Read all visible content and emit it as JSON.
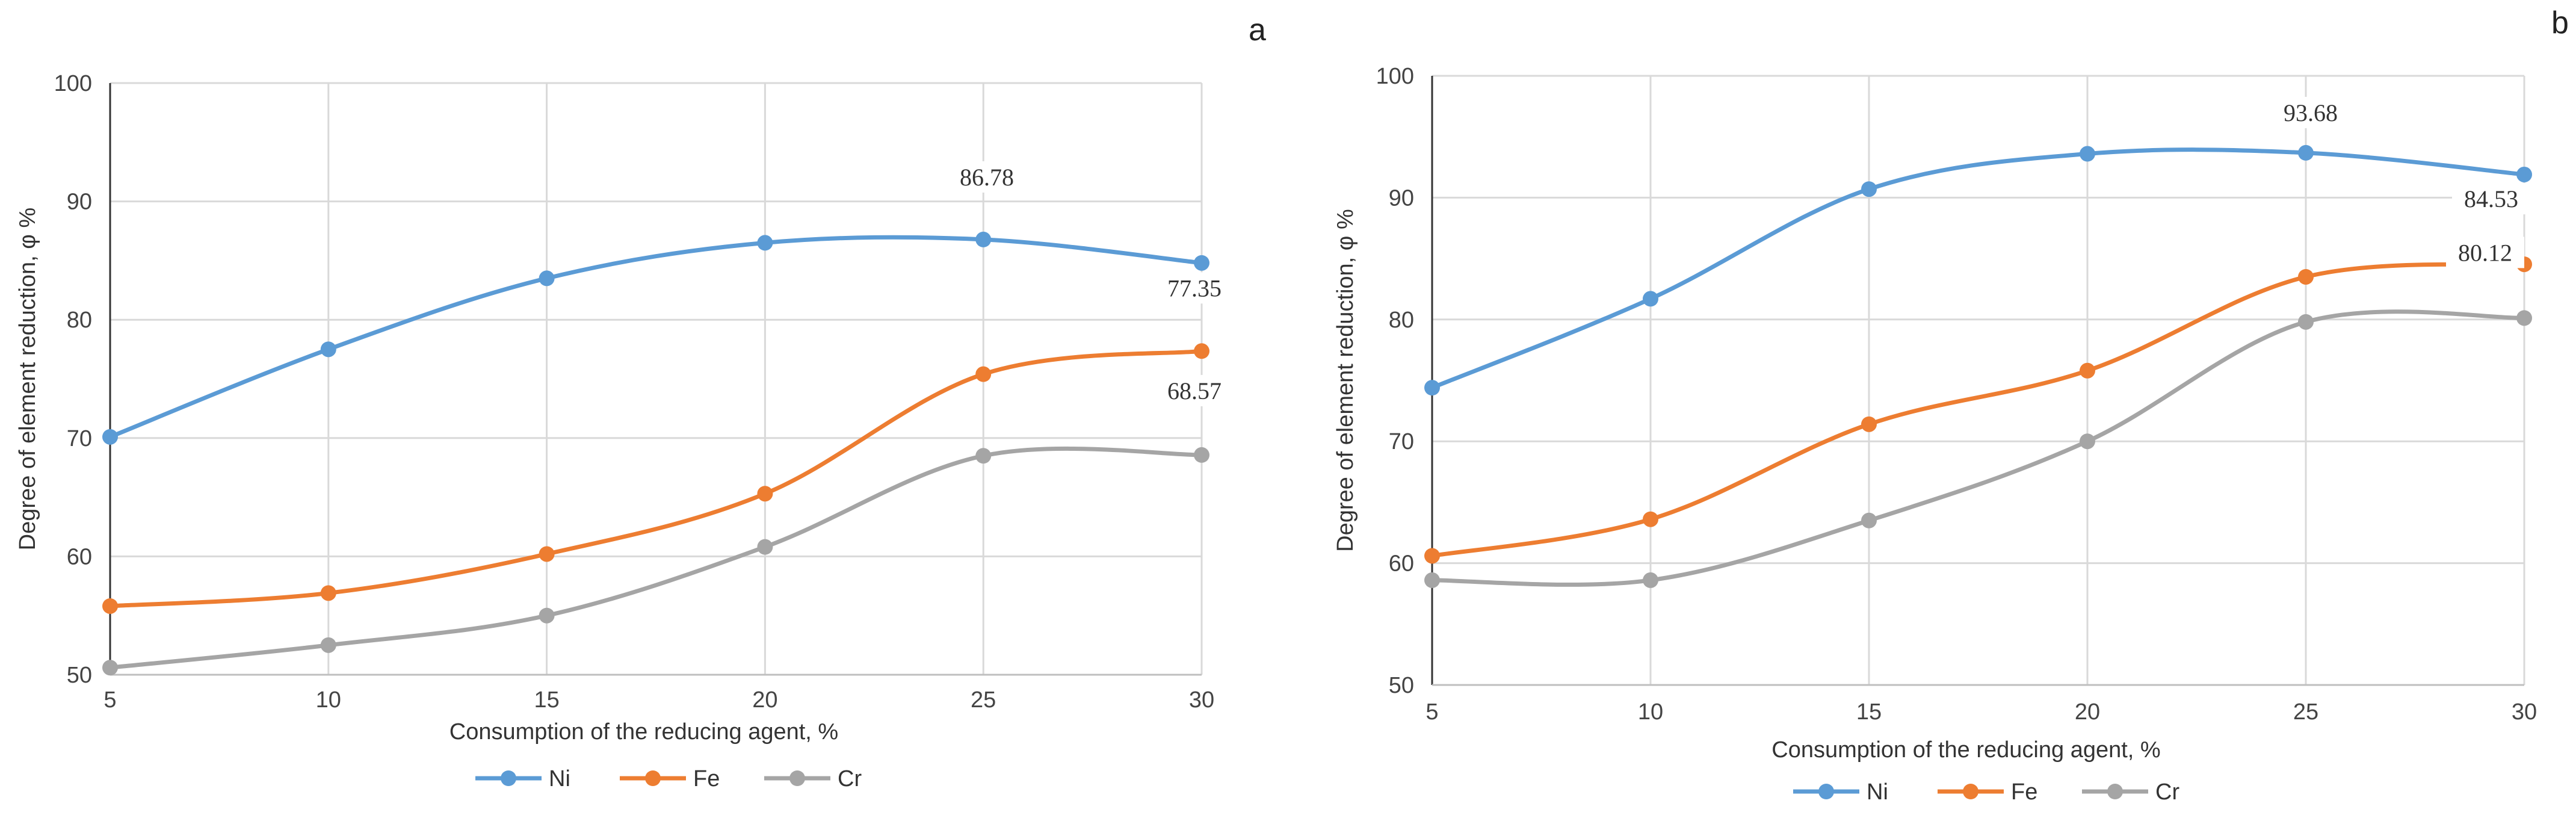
{
  "chart_data": [
    {
      "panel_label": "a",
      "type": "line",
      "x": [
        5,
        10,
        15,
        20,
        25,
        30
      ],
      "xlabel": "Consumption  of the reducing agent, %",
      "ylabel": "Degree of element reduction, φ %",
      "ylim": [
        50,
        100
      ],
      "yticks": [
        50,
        60,
        70,
        80,
        90,
        100
      ],
      "grid": true,
      "smooth": true,
      "legend": "bottom",
      "series": [
        {
          "name": "Ni",
          "color": "#5b9bd5",
          "values": [
            70.1,
            77.5,
            83.5,
            86.5,
            86.78,
            84.8
          ]
        },
        {
          "name": "Fe",
          "color": "#ed7d31",
          "values": [
            55.8,
            56.9,
            60.2,
            65.3,
            75.4,
            77.35
          ]
        },
        {
          "name": "Cr",
          "color": "#a5a5a5",
          "values": [
            50.6,
            52.5,
            55.0,
            60.8,
            68.5,
            68.57
          ]
        }
      ],
      "annotations": [
        {
          "text": "86.78",
          "series": "Ni",
          "x": 25
        },
        {
          "text": "77.35",
          "series": "Fe",
          "x": 30
        },
        {
          "text": "68.57",
          "series": "Cr",
          "x": 30
        }
      ]
    },
    {
      "panel_label": "b",
      "type": "line",
      "x": [
        5,
        10,
        15,
        20,
        25,
        30
      ],
      "xlabel": "Consumption  of the reducing agent, %",
      "ylabel": "Degree of element reduction, φ %",
      "ylim": [
        50,
        100
      ],
      "yticks": [
        50,
        60,
        70,
        80,
        90,
        100
      ],
      "grid": true,
      "smooth": true,
      "legend": "bottom",
      "series": [
        {
          "name": "Ni",
          "color": "#5b9bd5",
          "values": [
            74.4,
            81.7,
            90.7,
            93.6,
            93.68,
            91.9
          ]
        },
        {
          "name": "Fe",
          "color": "#ed7d31",
          "values": [
            60.6,
            63.6,
            71.4,
            75.8,
            83.5,
            84.53
          ]
        },
        {
          "name": "Cr",
          "color": "#a5a5a5",
          "values": [
            58.6,
            58.6,
            63.5,
            70.0,
            79.8,
            80.12
          ]
        }
      ],
      "annotations": [
        {
          "text": "93.68",
          "series": "Ni",
          "x": 25
        },
        {
          "text": "84.53",
          "series": "Fe",
          "x": 30
        },
        {
          "text": "80.12",
          "series": "Cr",
          "x": 30
        }
      ]
    }
  ]
}
